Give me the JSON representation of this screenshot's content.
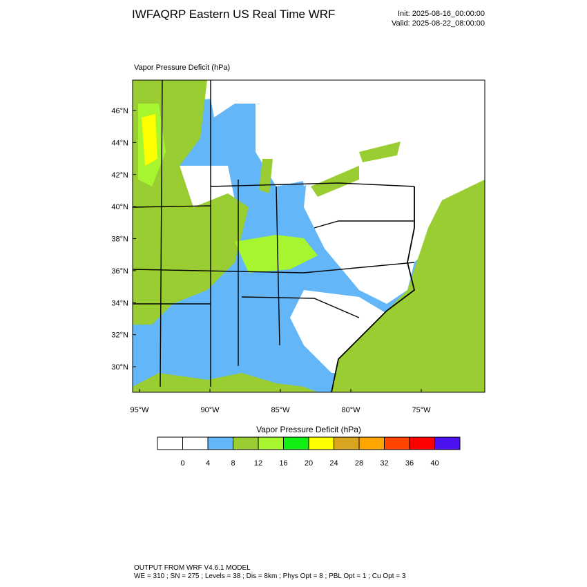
{
  "header": {
    "title": "IWFAQRP Eastern US Real Time WRF",
    "init": "Init: 2025-08-16_00:00:00",
    "valid": "Valid: 2025-08-22_08:00:00"
  },
  "map": {
    "field_label": "Vapor Pressure Deficit   (hPa)",
    "lat_ticks": [
      {
        "value": 30,
        "label": "30°N"
      },
      {
        "value": 32,
        "label": "32°N"
      },
      {
        "value": 34,
        "label": "34°N"
      },
      {
        "value": 36,
        "label": "36°N"
      },
      {
        "value": 38,
        "label": "38°N"
      },
      {
        "value": 40,
        "label": "40°N"
      },
      {
        "value": 42,
        "label": "42°N"
      },
      {
        "value": 44,
        "label": "44°N"
      },
      {
        "value": 46,
        "label": "46°N"
      }
    ],
    "lon_ticks": [
      {
        "value": -95,
        "label": "95°W"
      },
      {
        "value": -90,
        "label": "90°W"
      },
      {
        "value": -85,
        "label": "85°W"
      },
      {
        "value": -80,
        "label": "80°W"
      },
      {
        "value": -75,
        "label": "75°W"
      }
    ]
  },
  "colorbar": {
    "label": "Vapor Pressure Deficit  (hPa)",
    "colors": [
      "#ffffff",
      "#ffffff",
      "#63b6f7",
      "#9acd32",
      "#a6f52f",
      "#11ee11",
      "#ffff00",
      "#d9a520",
      "#ffa500",
      "#ff4500",
      "#ff0000",
      "#4b11ee"
    ],
    "ticks": [
      0,
      4,
      8,
      12,
      16,
      20,
      24,
      28,
      32,
      36,
      40
    ]
  },
  "footer": {
    "line1": "OUTPUT FROM WRF V4.6.1 MODEL",
    "line2": "WE = 310 ; SN = 275 ; Levels = 38 ; Dis = 8km ; Phys Opt = 8 ; PBL Opt = 1 ; Cu Opt = 3"
  }
}
